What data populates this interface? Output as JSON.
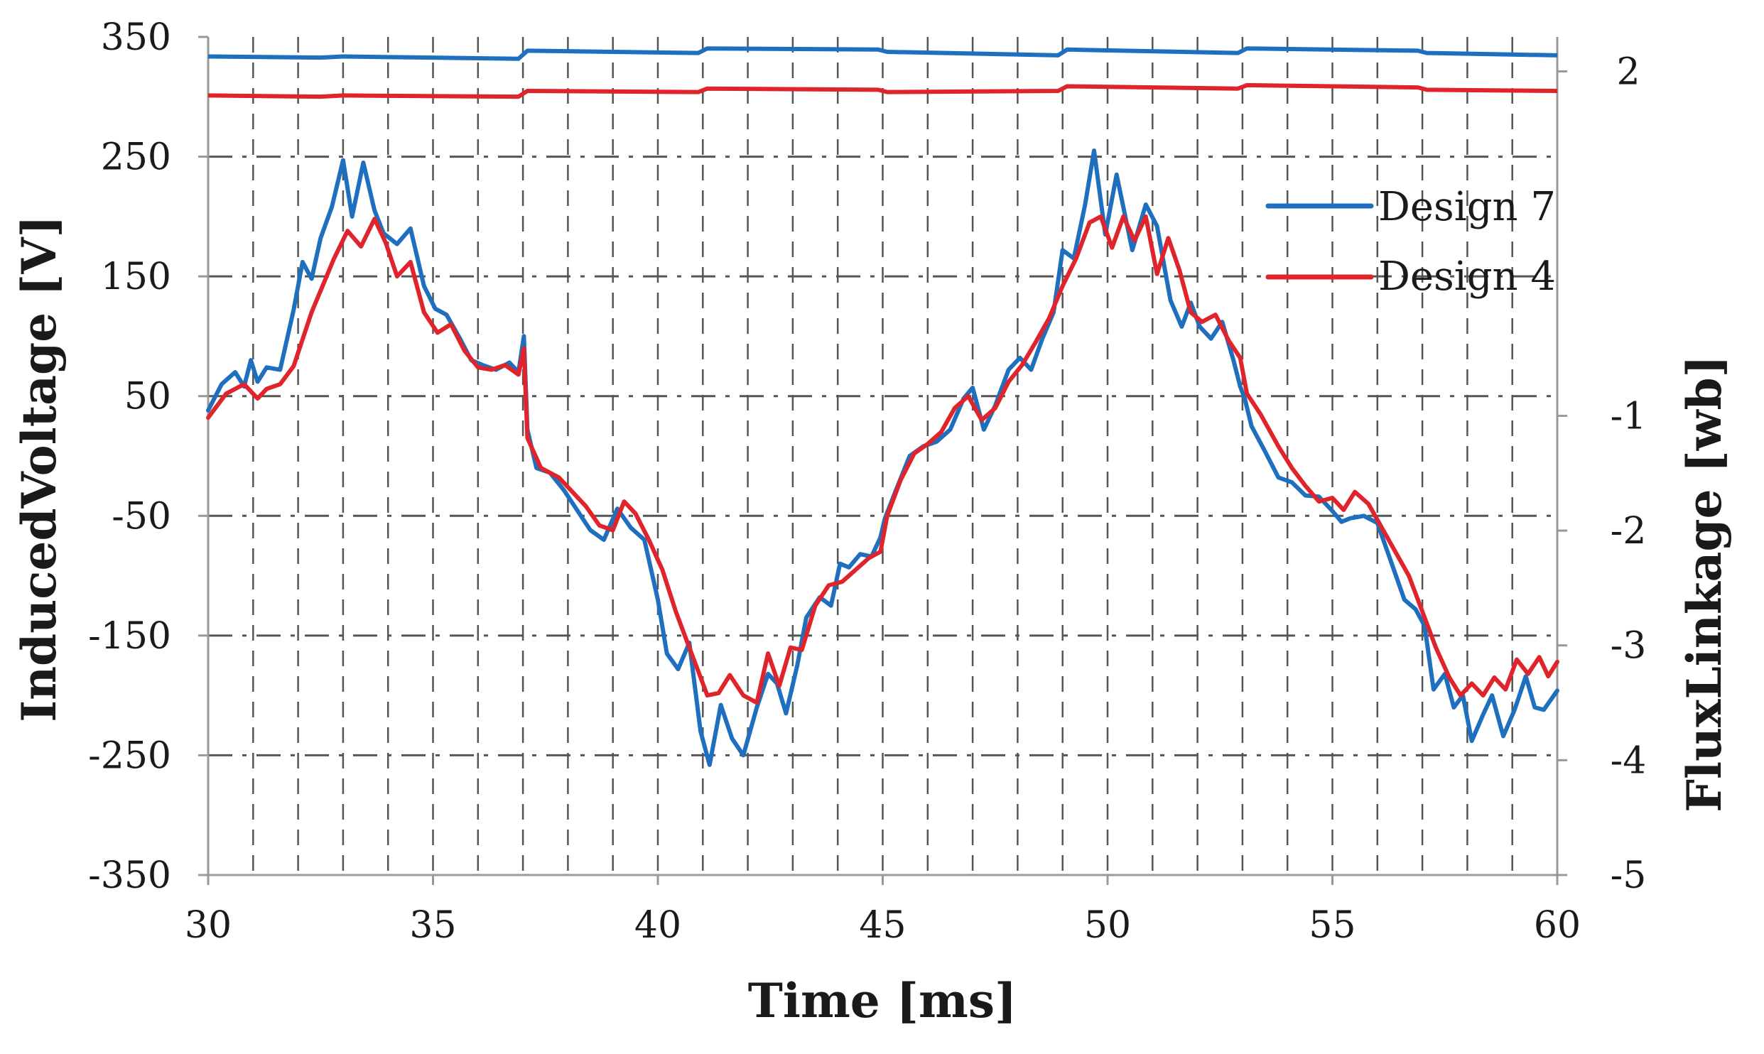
{
  "chart_data": {
    "type": "line",
    "xlabel": "Time [ms]",
    "ylabel_left": "InducedVoltage [V]",
    "ylabel_right": "FluxLinkage [wb]",
    "xlim": [
      30,
      60
    ],
    "ylim_left": [
      -350,
      350
    ],
    "ylim_right": [
      -5,
      2.3
    ],
    "x_ticks": [
      30,
      35,
      40,
      45,
      50,
      55,
      60
    ],
    "y_ticks_left": [
      350,
      250,
      150,
      50,
      -50,
      -150,
      -250,
      -350
    ],
    "y_ticks_right": [
      2,
      -1,
      -2,
      -3,
      -4,
      -5
    ],
    "x_tick_labels": [
      "30",
      "35",
      "40",
      "45",
      "50",
      "55",
      "60"
    ],
    "y_tick_labels_left": [
      "350",
      "250",
      "150",
      "50",
      "-50",
      "-150",
      "-250",
      "-350"
    ],
    "y_tick_labels_right": [
      "2",
      "-1",
      "-2",
      "-3",
      "-4",
      "-5"
    ],
    "grid": true,
    "legend_position": "top-right",
    "colors": {
      "design7": "#1f6fbf",
      "design4": "#e0242b",
      "grid": "#555555",
      "axis": "#999999"
    },
    "series": [
      {
        "name": "Design 7",
        "axis": "left",
        "x": [
          30,
          30.3,
          30.6,
          30.8,
          30.95,
          31.1,
          31.3,
          31.6,
          31.9,
          32.1,
          32.3,
          32.5,
          32.75,
          33,
          33.2,
          33.45,
          33.7,
          33.9,
          34.2,
          34.5,
          34.8,
          35.05,
          35.3,
          35.6,
          35.85,
          36.1,
          36.4,
          36.7,
          36.9,
          37.02,
          37.1,
          37.3,
          37.6,
          37.9,
          38.2,
          38.5,
          38.8,
          39.1,
          39.4,
          39.7,
          40,
          40.2,
          40.45,
          40.7,
          40.95,
          41.15,
          41.4,
          41.65,
          41.9,
          42.2,
          42.45,
          42.65,
          42.85,
          43.1,
          43.3,
          43.6,
          43.85,
          44.05,
          44.25,
          44.5,
          44.75,
          44.95,
          45.05,
          45.3,
          45.6,
          45.9,
          46.2,
          46.5,
          46.8,
          47,
          47.25,
          47.5,
          47.8,
          48.05,
          48.3,
          48.55,
          48.8,
          49,
          49.25,
          49.5,
          49.7,
          49.95,
          50.2,
          50.55,
          50.85,
          51.1,
          51.4,
          51.65,
          51.85,
          52.05,
          52.3,
          52.55,
          52.8,
          52.95,
          53.05,
          53.2,
          53.5,
          53.8,
          54.1,
          54.4,
          54.7,
          55,
          55.2,
          55.4,
          55.7,
          56,
          56.3,
          56.6,
          56.85,
          57.05,
          57.25,
          57.5,
          57.7,
          57.9,
          58.1,
          58.35,
          58.55,
          58.8,
          59.05,
          59.3,
          59.5,
          59.7,
          60
        ],
        "y": [
          38,
          60,
          70,
          58,
          80,
          62,
          74,
          72,
          122,
          162,
          148,
          182,
          208,
          247,
          200,
          245,
          205,
          186,
          177,
          190,
          142,
          123,
          118,
          98,
          80,
          76,
          72,
          78,
          70,
          100,
          22,
          -10,
          -14,
          -28,
          -45,
          -62,
          -70,
          -44,
          -60,
          -70,
          -120,
          -165,
          -178,
          -156,
          -230,
          -258,
          -208,
          -236,
          -250,
          -210,
          -182,
          -190,
          -215,
          -175,
          -135,
          -118,
          -125,
          -90,
          -93,
          -82,
          -84,
          -68,
          -52,
          -28,
          0,
          8,
          12,
          22,
          48,
          57,
          22,
          42,
          72,
          82,
          72,
          98,
          120,
          172,
          165,
          210,
          255,
          185,
          235,
          172,
          210,
          192,
          130,
          108,
          128,
          108,
          98,
          112,
          80,
          58,
          48,
          25,
          4,
          -18,
          -22,
          -33,
          -34,
          -46,
          -55,
          -52,
          -50,
          -56,
          -88,
          -120,
          -128,
          -142,
          -195,
          -182,
          -210,
          -200,
          -238,
          -216,
          -200,
          -234,
          -212,
          -184,
          -210,
          -212,
          -196
        ],
        "y2_x": [
          30,
          32.5,
          33,
          36.9,
          37.1,
          40.9,
          41.1,
          44.9,
          45.1,
          48.9,
          49.1,
          52.9,
          53.1,
          56.9,
          57.1,
          60
        ],
        "y2": [
          2.13,
          2.12,
          2.13,
          2.11,
          2.18,
          2.16,
          2.2,
          2.19,
          2.17,
          2.14,
          2.19,
          2.16,
          2.2,
          2.18,
          2.16,
          2.14
        ]
      },
      {
        "name": "Design 4",
        "axis": "left",
        "x": [
          30,
          30.4,
          30.8,
          31.1,
          31.3,
          31.6,
          31.9,
          32.3,
          32.8,
          33.1,
          33.4,
          33.7,
          33.95,
          34.2,
          34.5,
          34.8,
          35.1,
          35.4,
          35.7,
          36,
          36.3,
          36.6,
          36.9,
          37.02,
          37.1,
          37.4,
          37.8,
          38.1,
          38.4,
          38.7,
          39,
          39.25,
          39.5,
          39.8,
          40.1,
          40.4,
          40.65,
          40.9,
          41.1,
          41.35,
          41.6,
          41.9,
          42.2,
          42.45,
          42.7,
          42.95,
          43.2,
          43.5,
          43.8,
          44.1,
          44.4,
          44.7,
          44.95,
          45.1,
          45.4,
          45.7,
          46,
          46.3,
          46.6,
          46.9,
          47.2,
          47.5,
          47.8,
          48.1,
          48.4,
          48.7,
          49,
          49.3,
          49.6,
          49.85,
          50.1,
          50.35,
          50.6,
          50.85,
          51.1,
          51.35,
          51.6,
          51.85,
          52.1,
          52.4,
          52.7,
          52.95,
          53.1,
          53.4,
          53.8,
          54.1,
          54.4,
          54.7,
          55,
          55.25,
          55.5,
          55.8,
          56.1,
          56.4,
          56.7,
          57,
          57.3,
          57.6,
          57.85,
          58.1,
          58.35,
          58.6,
          58.85,
          59.1,
          59.35,
          59.6,
          59.8,
          60
        ],
        "y": [
          32,
          52,
          60,
          48,
          56,
          60,
          75,
          120,
          165,
          188,
          175,
          198,
          178,
          150,
          162,
          120,
          103,
          110,
          88,
          74,
          72,
          76,
          68,
          90,
          15,
          -10,
          -18,
          -30,
          -42,
          -58,
          -62,
          -38,
          -48,
          -70,
          -95,
          -130,
          -155,
          -180,
          -200,
          -198,
          -183,
          -200,
          -206,
          -165,
          -192,
          -160,
          -162,
          -125,
          -108,
          -105,
          -95,
          -85,
          -80,
          -50,
          -20,
          2,
          10,
          20,
          40,
          50,
          30,
          40,
          62,
          76,
          95,
          115,
          142,
          165,
          195,
          200,
          174,
          200,
          180,
          200,
          152,
          182,
          155,
          120,
          112,
          118,
          96,
          82,
          52,
          35,
          8,
          -10,
          -25,
          -38,
          -35,
          -45,
          -30,
          -40,
          -60,
          -80,
          -100,
          -130,
          -160,
          -185,
          -200,
          -190,
          -200,
          -185,
          -195,
          -170,
          -182,
          -168,
          -184,
          -172
        ],
        "y2_x": [
          30,
          32.5,
          33,
          36.9,
          37.1,
          40.9,
          41.1,
          44.9,
          45.1,
          48.9,
          49.1,
          52.9,
          53.1,
          56.9,
          57.1,
          60
        ],
        "y2": [
          1.79,
          1.78,
          1.79,
          1.78,
          1.83,
          1.82,
          1.85,
          1.84,
          1.82,
          1.83,
          1.87,
          1.85,
          1.88,
          1.86,
          1.84,
          1.83
        ]
      }
    ]
  }
}
